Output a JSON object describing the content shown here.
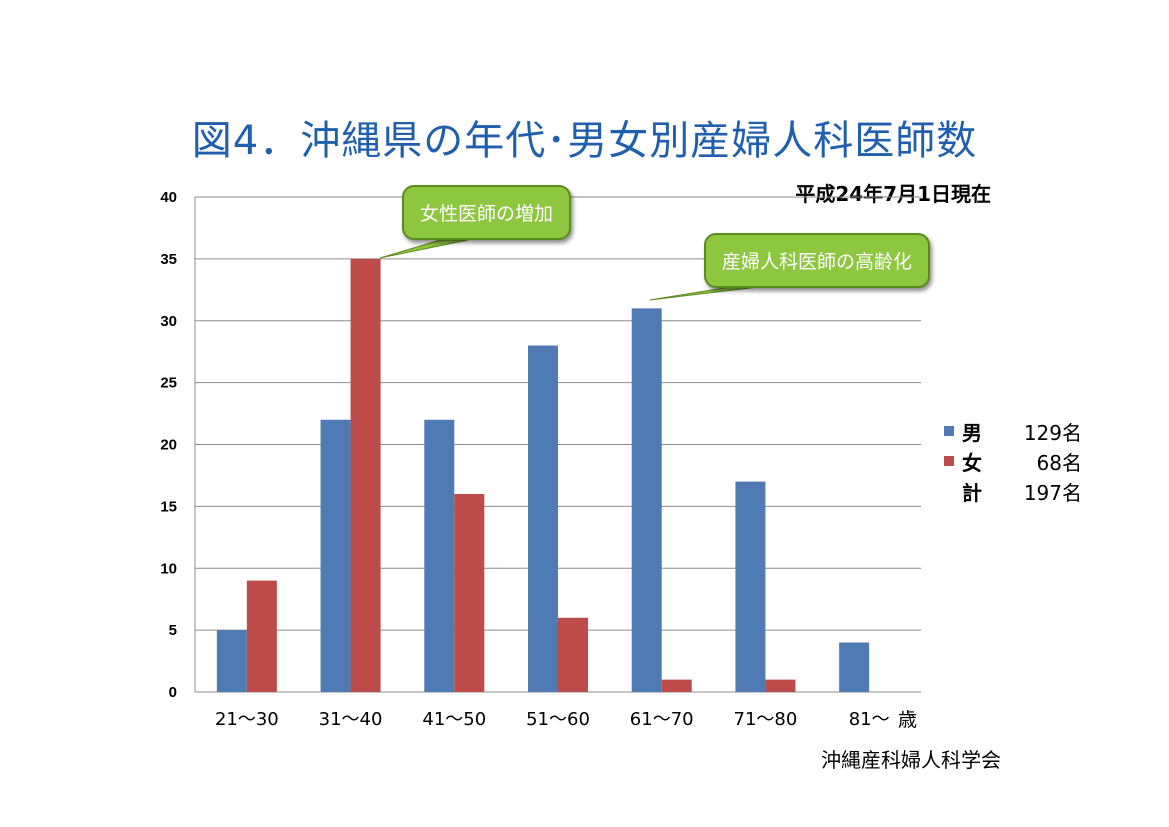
{
  "title": "図4．沖縄県の年代･男女別産婦人科医師数",
  "date_note": "平成24年7月1日現在",
  "unit_label": "歳",
  "source": "沖縄産科婦人科学会",
  "callouts": {
    "female_increase": "女性医師の増加",
    "aging": "産婦人科医師の高齢化"
  },
  "legend": {
    "male": {
      "label": "男",
      "count": "129名"
    },
    "female": {
      "label": "女",
      "count": "68名"
    },
    "total": {
      "label": "計",
      "count": "197名"
    }
  },
  "colors": {
    "male": "#4f7ab3",
    "female": "#bc4b49",
    "title": "#1f5fae",
    "callout": "#8dc63f"
  },
  "chart_data": {
    "type": "bar",
    "title": "図4．沖縄県の年代･男女別産婦人科医師数",
    "xlabel": "歳",
    "ylabel": "",
    "ylim": [
      0,
      40
    ],
    "yticks": [
      0,
      5,
      10,
      15,
      20,
      25,
      30,
      35,
      40
    ],
    "categories": [
      "21～30",
      "31～40",
      "41～50",
      "51～60",
      "61～70",
      "71～80",
      "81～"
    ],
    "series": [
      {
        "name": "男",
        "color": "#4f7ab3",
        "values": [
          5,
          22,
          22,
          28,
          31,
          17,
          4
        ]
      },
      {
        "name": "女",
        "color": "#bc4b49",
        "values": [
          9,
          35,
          16,
          6,
          1,
          1,
          0
        ]
      }
    ],
    "grid": true,
    "legend_position": "right"
  }
}
